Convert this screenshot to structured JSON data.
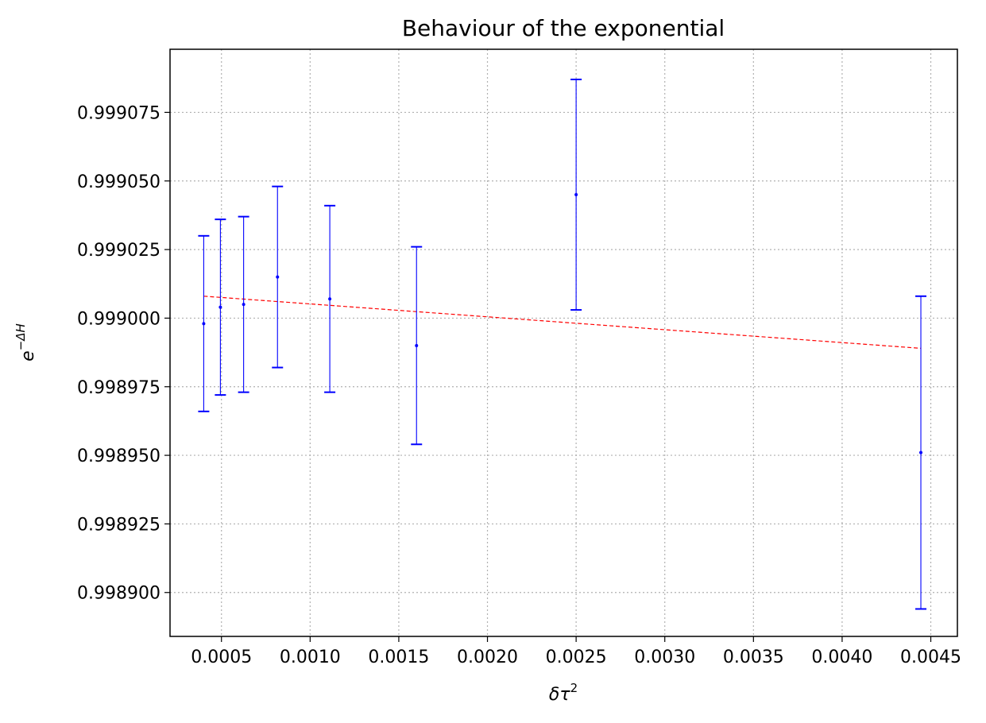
{
  "chart_data": {
    "type": "scatter",
    "title": "Behaviour of the exponential",
    "xlabel": {
      "base": "δτ",
      "sup": "2"
    },
    "ylabel": {
      "base": "e",
      "sup": "−ΔH"
    },
    "xlim": [
      0.00021,
      0.00465
    ],
    "ylim": [
      0.998884,
      0.999098
    ],
    "xticks": [
      0.0005,
      0.001,
      0.0015,
      0.002,
      0.0025,
      0.003,
      0.0035,
      0.004,
      0.0045
    ],
    "xtick_labels": [
      "0.0005",
      "0.0010",
      "0.0015",
      "0.0020",
      "0.0025",
      "0.0030",
      "0.0035",
      "0.0040",
      "0.0045"
    ],
    "yticks": [
      0.9989,
      0.998925,
      0.99895,
      0.998975,
      0.999,
      0.999025,
      0.99905,
      0.999075
    ],
    "ytick_labels": [
      "0.998900",
      "0.998925",
      "0.998950",
      "0.998975",
      "0.999000",
      "0.999025",
      "0.999050",
      "0.999075"
    ],
    "grid": true,
    "series": [
      {
        "kind": "errorbar",
        "color": "#0000ff",
        "points": [
          {
            "x": 0.0004,
            "y": 0.998998,
            "yerr": 3.2e-05
          },
          {
            "x": 0.000494,
            "y": 0.999004,
            "yerr": 3.2e-05
          },
          {
            "x": 0.000625,
            "y": 0.999005,
            "yerr": 3.2e-05
          },
          {
            "x": 0.000816,
            "y": 0.999015,
            "yerr": 3.3e-05
          },
          {
            "x": 0.001111,
            "y": 0.999007,
            "yerr": 3.4e-05
          },
          {
            "x": 0.0016,
            "y": 0.99899,
            "yerr": 3.6e-05
          },
          {
            "x": 0.0025,
            "y": 0.999045,
            "yerr": 4.2e-05
          },
          {
            "x": 0.004444,
            "y": 0.998951,
            "yerr": 5.7e-05
          }
        ]
      },
      {
        "kind": "fit-line",
        "color": "#ff0000",
        "style": "dashed",
        "x": [
          0.0004,
          0.004444
        ],
        "y": [
          0.999008,
          0.998989
        ]
      }
    ]
  }
}
